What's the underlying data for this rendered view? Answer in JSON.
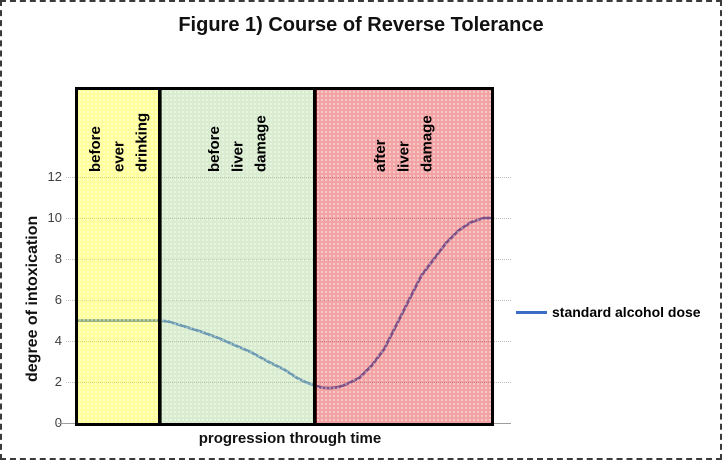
{
  "chart_data": {
    "type": "line",
    "title": "Figure 1) Course of Reverse Tolerance",
    "xlabel": "progression through time",
    "ylabel": "degree of intoxication",
    "ylim": [
      0,
      12
    ],
    "yticks": [
      0,
      2,
      4,
      6,
      8,
      10,
      12
    ],
    "xlim": [
      0,
      100
    ],
    "x_tick_labels_shown": false,
    "grid": true,
    "gridline_color": "#bdbdbd",
    "legend": {
      "position": "right",
      "entries": [
        {
          "label": "standard alcohol dose",
          "color": "#3a6cc8"
        }
      ]
    },
    "series": [
      {
        "name": "standard alcohol dose",
        "color": "#3a6cc8",
        "points": [
          [
            0,
            5
          ],
          [
            20,
            5
          ],
          [
            22,
            4.95
          ],
          [
            26,
            4.7
          ],
          [
            30,
            4.45
          ],
          [
            34,
            4.15
          ],
          [
            38,
            3.8
          ],
          [
            42,
            3.45
          ],
          [
            46,
            3.0
          ],
          [
            50,
            2.6
          ],
          [
            53,
            2.2
          ],
          [
            55,
            2.0
          ],
          [
            57,
            1.85
          ],
          [
            59,
            1.72
          ],
          [
            61,
            1.7
          ],
          [
            63,
            1.75
          ],
          [
            65,
            1.9
          ],
          [
            68,
            2.2
          ],
          [
            71,
            2.8
          ],
          [
            74,
            3.6
          ],
          [
            77,
            4.8
          ],
          [
            80,
            6.0
          ],
          [
            83,
            7.2
          ],
          [
            86,
            8.0
          ],
          [
            89,
            8.8
          ],
          [
            92,
            9.4
          ],
          [
            95,
            9.8
          ],
          [
            98,
            10
          ],
          [
            100,
            10
          ]
        ]
      }
    ],
    "zones": [
      {
        "label": "before\never\ndrinking",
        "t_start": 0,
        "t_end": 20,
        "fill": "rgba(255,255,24,0.42)"
      },
      {
        "label": "before\nliver\ndamage",
        "t_start": 20,
        "t_end": 57.3,
        "fill": "rgba(171,213,148,0.45)"
      },
      {
        "label": "after\nliver\ndamage",
        "t_start": 57.3,
        "t_end": 100,
        "fill": "rgba(224,38,38,0.42)"
      }
    ]
  }
}
